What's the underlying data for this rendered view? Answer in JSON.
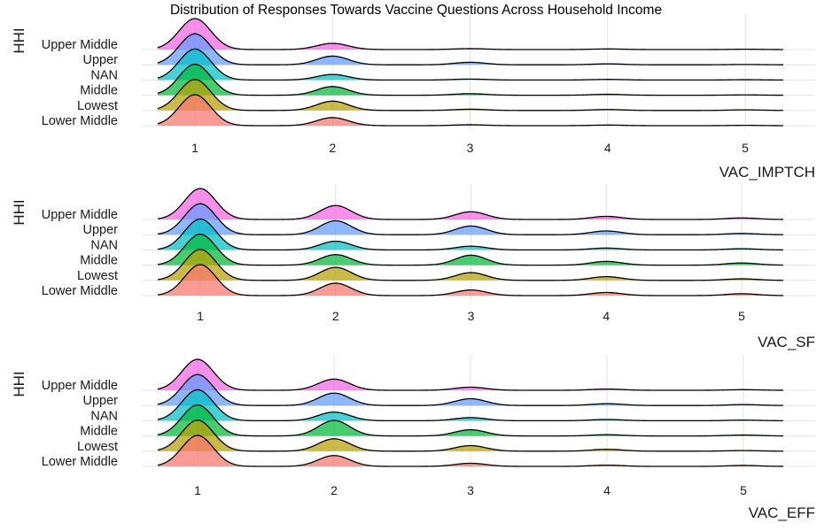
{
  "title": "Distribution of Responses Towards Vaccine Questions Across Household Income",
  "chart_data": [
    {
      "type": "ridgeline",
      "ylabel": "HHI",
      "xlabel": "VAC_IMPTCH",
      "x_ticks": [
        1,
        2,
        3,
        4,
        5
      ],
      "xlim": [
        0.72,
        5.28
      ],
      "grid": true,
      "series": [
        {
          "name": "Lower Middle",
          "color": "#F8766D",
          "peaks": [
            1,
            0.26,
            0.03,
            0.02,
            0.01
          ]
        },
        {
          "name": "Lowest",
          "color": "#B79F00",
          "peaks": [
            1,
            0.3,
            0.04,
            0.03,
            0.02
          ]
        },
        {
          "name": "Middle",
          "color": "#00BA38",
          "peaks": [
            1,
            0.28,
            0.05,
            0.03,
            0.01
          ]
        },
        {
          "name": "NAN",
          "color": "#00BFC4",
          "peaks": [
            1,
            0.18,
            0.03,
            0.02,
            0.01
          ]
        },
        {
          "name": "Upper",
          "color": "#619CFF",
          "peaks": [
            1,
            0.28,
            0.08,
            0.03,
            0.01
          ]
        },
        {
          "name": "Upper Middle",
          "color": "#F564E3",
          "peaks": [
            1,
            0.2,
            0.03,
            0.02,
            0.01
          ]
        }
      ]
    },
    {
      "type": "ridgeline",
      "ylabel": "HHI",
      "xlabel": "VAC_SF",
      "x_ticks": [
        1,
        2,
        3,
        4,
        5
      ],
      "xlim": [
        0.67,
        5.33
      ],
      "grid": true,
      "series": [
        {
          "name": "Lower Middle",
          "color": "#F8766D",
          "peaks": [
            1,
            0.4,
            0.18,
            0.1,
            0.06
          ]
        },
        {
          "name": "Lowest",
          "color": "#B79F00",
          "peaks": [
            1,
            0.42,
            0.25,
            0.12,
            0.05
          ]
        },
        {
          "name": "Middle",
          "color": "#00BA38",
          "peaks": [
            1,
            0.34,
            0.32,
            0.12,
            0.07
          ]
        },
        {
          "name": "NAN",
          "color": "#00BFC4",
          "peaks": [
            1,
            0.28,
            0.12,
            0.06,
            0.04
          ]
        },
        {
          "name": "Upper",
          "color": "#619CFF",
          "peaks": [
            1,
            0.45,
            0.28,
            0.12,
            0.04
          ]
        },
        {
          "name": "Upper Middle",
          "color": "#F564E3",
          "peaks": [
            1,
            0.45,
            0.25,
            0.1,
            0.05
          ]
        }
      ]
    },
    {
      "type": "ridgeline",
      "ylabel": "HHI",
      "xlabel": "VAC_EFF",
      "x_ticks": [
        1,
        2,
        3,
        4,
        5
      ],
      "xlim": [
        0.69,
        5.31
      ],
      "grid": true,
      "series": [
        {
          "name": "Lower Middle",
          "color": "#F8766D",
          "peaks": [
            1,
            0.35,
            0.1,
            0.04,
            0.03
          ]
        },
        {
          "name": "Lowest",
          "color": "#B79F00",
          "peaks": [
            1,
            0.4,
            0.18,
            0.06,
            0.02
          ]
        },
        {
          "name": "Middle",
          "color": "#00BA38",
          "peaks": [
            1,
            0.5,
            0.2,
            0.04,
            0.03
          ]
        },
        {
          "name": "NAN",
          "color": "#00BFC4",
          "peaks": [
            1,
            0.28,
            0.1,
            0.04,
            0.02
          ]
        },
        {
          "name": "Upper",
          "color": "#619CFF",
          "peaks": [
            1,
            0.4,
            0.22,
            0.06,
            0.03
          ]
        },
        {
          "name": "Upper Middle",
          "color": "#F564E3",
          "peaks": [
            1,
            0.36,
            0.1,
            0.04,
            0.02
          ]
        }
      ]
    }
  ]
}
